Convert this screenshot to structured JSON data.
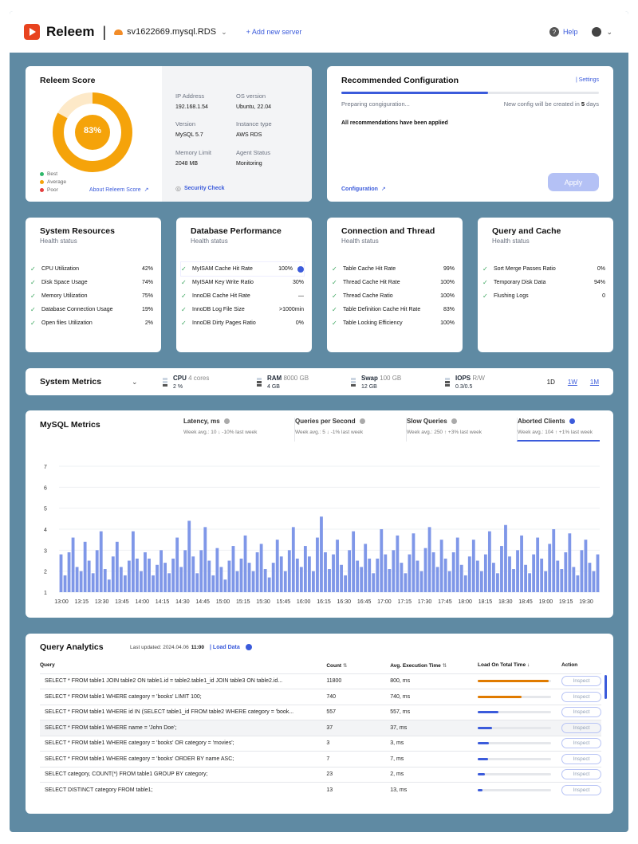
{
  "header": {
    "brand": "Releem",
    "server": "sv1622669.mysql.RDS",
    "add_server": "+ Add new server",
    "help": "Help"
  },
  "score": {
    "title": "Releem Score",
    "value": "83%",
    "percent": 83,
    "legend": [
      "Best",
      "Average",
      "Poor"
    ],
    "about": "About Releem Score",
    "info": [
      {
        "label": "IP Address",
        "value": "192.168.1.54"
      },
      {
        "label": "OS version",
        "value": "Ubuntu, 22.04"
      },
      {
        "label": "Version",
        "value": "MySQL 5.7"
      },
      {
        "label": "Instance type",
        "value": "AWS RDS"
      },
      {
        "label": "Memory Limit",
        "value": "2048 MB"
      },
      {
        "label": "Agent Status",
        "value": "Monitoring"
      }
    ],
    "security": "Security Check"
  },
  "recommended": {
    "title": "Recommended Configuration",
    "settings": "| Settings",
    "progress": 0.57,
    "preparing": "Preparing congiguration...",
    "created_prefix": "New config will be created in",
    "days": "5",
    "days_suffix": "days",
    "applied": "All recommendations have been applied",
    "configuration": "Configuration",
    "apply": "Apply"
  },
  "health": [
    {
      "title": "System Resources",
      "sub": "Health status",
      "rows": [
        [
          "CPU Utilization",
          "42%"
        ],
        [
          "Disk Space Usage",
          "74%"
        ],
        [
          "Memory Utilization",
          "75%"
        ],
        [
          "Database Connection Usage",
          "19%"
        ],
        [
          "Open files Utilization",
          "2%"
        ]
      ]
    },
    {
      "title": "Database Performance",
      "sub": "Health status",
      "rows": [
        [
          "MyISAM Cache Hit Rate",
          "100%"
        ],
        [
          "MyISAM Key Write Ratio",
          "30%"
        ],
        [
          "InnoDB Cache Hit Rate",
          "—"
        ],
        [
          "InnoDB Log File Size",
          ">1000min"
        ],
        [
          "InnoDB Dirty Pages Ratio",
          "0%"
        ]
      ]
    },
    {
      "title": "Connection and Thread",
      "sub": "Health status",
      "rows": [
        [
          "Table Cache Hit Rate",
          "99%"
        ],
        [
          "Thread Cache Hit Rate",
          "100%"
        ],
        [
          "Thread Cache Ratio",
          "100%"
        ],
        [
          "Table Definition Cache Hit Rate",
          "83%"
        ],
        [
          "Table Locking Efficiency",
          "100%"
        ]
      ]
    },
    {
      "title": "Query and Cache",
      "sub": "Health status",
      "rows": [
        [
          "Sort Merge Passes Ratio",
          "0%"
        ],
        [
          "Temporary Disk Data",
          "94%"
        ],
        [
          "Flushing Logs",
          "0"
        ]
      ]
    }
  ],
  "system_metrics": {
    "title": "System Metrics",
    "items": [
      {
        "name": "CPU",
        "detail": "4 cores",
        "value": "2 %",
        "level": 1
      },
      {
        "name": "RAM",
        "detail": "8000 GB",
        "value": "4 GB",
        "level": 2
      },
      {
        "name": "Swap",
        "detail": "100 GB",
        "value": "12 GB",
        "level": 1
      },
      {
        "name": "IOPS",
        "detail": "R/W",
        "value": "0.3/0.5",
        "level": 2
      }
    ],
    "ranges": [
      "1D",
      "1W",
      "1M"
    ]
  },
  "mysql": {
    "title": "MySQL Metrics",
    "tabs": [
      {
        "name": "Latency, ms",
        "sub": "Week avg.: 10 ↓ -10% last week"
      },
      {
        "name": "Queries per Second",
        "sub": "Week avg.: 5 ↓ -1% last week"
      },
      {
        "name": "Slow Queries",
        "sub": "Week avg.: 250 ↑ +3% last week"
      },
      {
        "name": "Aborted Clients",
        "sub": "Week avg.: 104 ↑ +1% last week"
      }
    ]
  },
  "chart_data": {
    "type": "bar",
    "ylim": [
      1,
      7
    ],
    "yticks": [
      1,
      2,
      3,
      4,
      5,
      6,
      7
    ],
    "xticks": [
      "13:00",
      "13:15",
      "13:30",
      "13:45",
      "14:00",
      "14:15",
      "14:30",
      "14:45",
      "15:00",
      "15:15",
      "15:30",
      "15:45",
      "16:00",
      "16:15",
      "16:30",
      "16:45",
      "17:00",
      "17:15",
      "17:30",
      "17:45",
      "18:00",
      "18:15",
      "18:30",
      "18:45",
      "19:00",
      "19:15",
      "19:30"
    ],
    "values": [
      2.8,
      1.8,
      2.9,
      3.6,
      2.2,
      2.0,
      3.4,
      2.5,
      1.9,
      3.0,
      3.9,
      2.1,
      1.6,
      2.7,
      3.4,
      2.2,
      1.8,
      2.5,
      3.9,
      2.6,
      2.0,
      2.9,
      2.6,
      1.8,
      2.3,
      3.0,
      2.4,
      1.9,
      2.6,
      3.6,
      2.2,
      3.0,
      4.4,
      2.7,
      1.9,
      3.0,
      4.1,
      2.5,
      1.8,
      3.1,
      2.2,
      1.6,
      2.5,
      3.2,
      2.0,
      2.6,
      3.7,
      2.4,
      2.0,
      2.9,
      3.3,
      2.1,
      1.7,
      2.4,
      3.5,
      2.7,
      2.0,
      3.0,
      4.1,
      2.6,
      2.2,
      3.2,
      2.7,
      2.0,
      3.6,
      4.6,
      2.9,
      2.1,
      2.8,
      3.5,
      2.3,
      1.8,
      3.0,
      3.9,
      2.5,
      2.2,
      3.3,
      2.6,
      1.9,
      2.6,
      4.0,
      2.8,
      2.1,
      3.0,
      3.7,
      2.4,
      1.9,
      2.8,
      3.8,
      2.5,
      2.0,
      3.1,
      4.1,
      2.9,
      2.2,
      3.5,
      2.6,
      2.0,
      2.9,
      3.6,
      2.3,
      1.8,
      2.7,
      3.5,
      2.5,
      2.0,
      2.8,
      3.9,
      2.4,
      1.9,
      3.2,
      4.2,
      2.7,
      2.1,
      3.0,
      3.7,
      2.3,
      1.9,
      2.8,
      3.6,
      2.6,
      2.0,
      3.3,
      4.0,
      2.5,
      2.1,
      2.9,
      3.8,
      2.2,
      1.8,
      3.0,
      3.5,
      2.4,
      2.0,
      2.8
    ]
  },
  "query": {
    "title": "Query Analytics",
    "updated_label": "Last updated: 2024.04.06",
    "updated_time": "11:00",
    "load": "| Load Data",
    "columns": [
      "Query",
      "Count",
      "Avg. Execution Time",
      "Load On Total Time",
      "Action"
    ],
    "rows": [
      {
        "q": "SELECT * FROM table1 JOIN table2 ON table1.id = table2.table1_id JOIN table3 ON table2.id...",
        "count": "11800",
        "avg": "800, ms",
        "load": 0.97,
        "color": "#e07b00"
      },
      {
        "q": "SELECT * FROM table1 WHERE category = 'books' LIMIT 100;",
        "count": "740",
        "avg": "740, ms",
        "load": 0.6,
        "color": "#e07b00"
      },
      {
        "q": "SELECT * FROM table1 WHERE id IN (SELECT table1_id FROM table2 WHERE category = 'book...",
        "count": "557",
        "avg": "557, ms",
        "load": 0.28,
        "color": "#3b5bdb"
      },
      {
        "q": "SELECT * FROM table1 WHERE name = 'John Doe';",
        "count": "37",
        "avg": "37, ms",
        "load": 0.2,
        "color": "#3b5bdb"
      },
      {
        "q": "SELECT * FROM table1 WHERE category = 'books' OR category = 'movies';",
        "count": "3",
        "avg": "3, ms",
        "load": 0.15,
        "color": "#3b5bdb"
      },
      {
        "q": "SELECT * FROM table1 WHERE category = 'books' ORDER BY name ASC;",
        "count": "7",
        "avg": "7, ms",
        "load": 0.14,
        "color": "#3b5bdb"
      },
      {
        "q": "SELECT category, COUNT(*) FROM table1 GROUP BY category;",
        "count": "23",
        "avg": "2, ms",
        "load": 0.1,
        "color": "#3b5bdb"
      },
      {
        "q": "SELECT DISTINCT category FROM table1;",
        "count": "13",
        "avg": "13, ms",
        "load": 0.07,
        "color": "#3b5bdb"
      }
    ],
    "inspect": "Inspect"
  }
}
